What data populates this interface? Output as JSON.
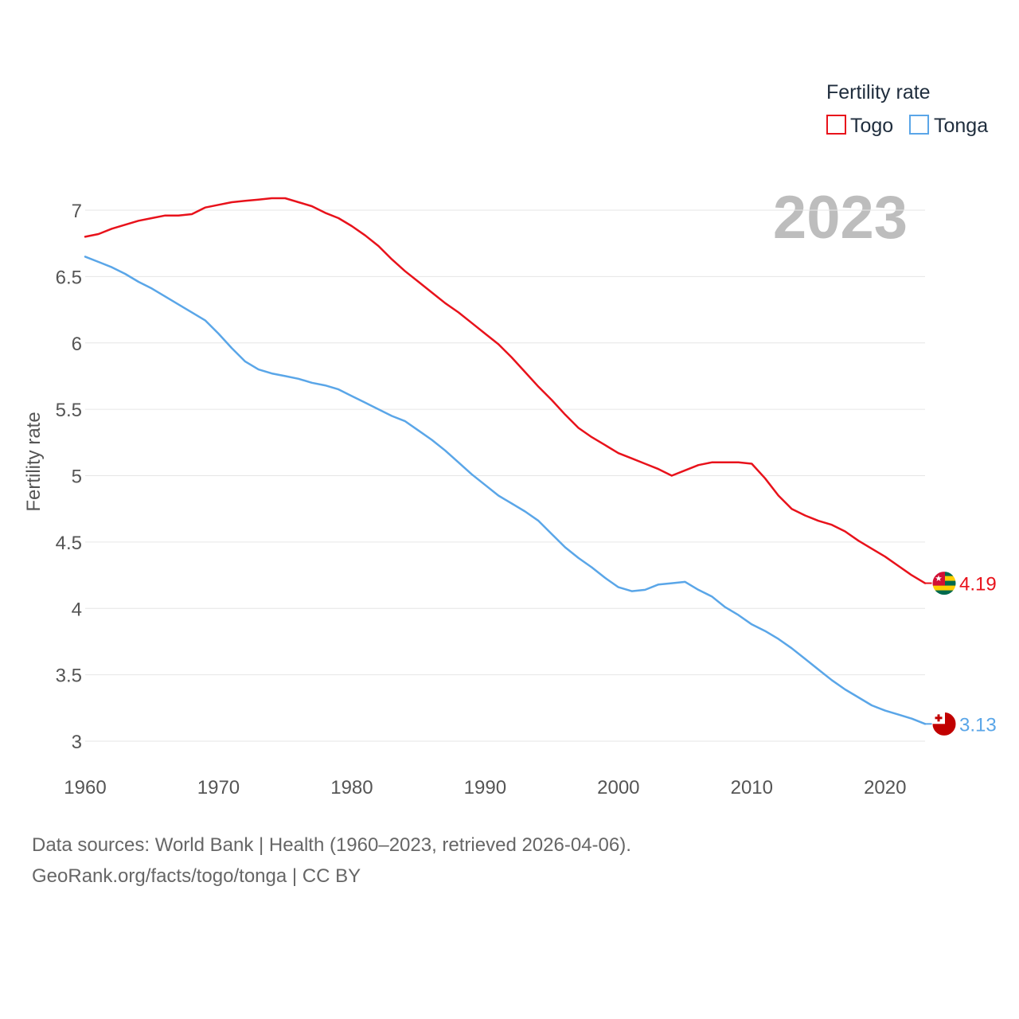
{
  "chart_data": {
    "type": "line",
    "ylabel": "Fertility rate",
    "xlabel": "",
    "xlim": [
      1960,
      2023
    ],
    "ylim": [
      3,
      7
    ],
    "x_ticks": [
      1960,
      1970,
      1980,
      1990,
      2000,
      2010,
      2020
    ],
    "y_ticks": [
      3,
      3.5,
      4,
      4.5,
      5,
      5.5,
      6,
      6.5,
      7
    ],
    "x_tick_labels": [
      "1960",
      "1970",
      "1980",
      "1990",
      "2000",
      "2010",
      "2020"
    ],
    "y_tick_labels": [
      "3",
      "3.5",
      "4",
      "4.5",
      "5",
      "5.5",
      "6",
      "6.5",
      "7"
    ],
    "grid": true,
    "year_label": "2023",
    "legend": {
      "title": "Fertility rate",
      "position": "top-right",
      "entries": [
        "Togo",
        "Tonga"
      ]
    },
    "x": [
      1960,
      1961,
      1962,
      1963,
      1964,
      1965,
      1966,
      1967,
      1968,
      1969,
      1970,
      1971,
      1972,
      1973,
      1974,
      1975,
      1976,
      1977,
      1978,
      1979,
      1980,
      1981,
      1982,
      1983,
      1984,
      1985,
      1986,
      1987,
      1988,
      1989,
      1990,
      1991,
      1992,
      1993,
      1994,
      1995,
      1996,
      1997,
      1998,
      1999,
      2000,
      2001,
      2002,
      2003,
      2004,
      2005,
      2006,
      2007,
      2008,
      2009,
      2010,
      2011,
      2012,
      2013,
      2014,
      2015,
      2016,
      2017,
      2018,
      2019,
      2020,
      2021,
      2022,
      2023
    ],
    "series": [
      {
        "name": "Togo",
        "color": "#e8121b",
        "end_label": "4.19",
        "flag": "togo-flag-icon",
        "values": [
          6.8,
          6.82,
          6.86,
          6.89,
          6.92,
          6.94,
          6.96,
          6.96,
          6.97,
          7.02,
          7.04,
          7.06,
          7.07,
          7.08,
          7.09,
          7.09,
          7.06,
          7.03,
          6.98,
          6.94,
          6.88,
          6.81,
          6.73,
          6.63,
          6.54,
          6.46,
          6.38,
          6.3,
          6.23,
          6.15,
          6.07,
          5.99,
          5.89,
          5.78,
          5.67,
          5.57,
          5.46,
          5.36,
          5.29,
          5.23,
          5.17,
          5.13,
          5.09,
          5.05,
          5.0,
          5.04,
          5.08,
          5.1,
          5.1,
          5.1,
          5.09,
          4.98,
          4.85,
          4.75,
          4.7,
          4.66,
          4.63,
          4.58,
          4.51,
          4.45,
          4.39,
          4.32,
          4.25,
          4.19
        ]
      },
      {
        "name": "Tonga",
        "color": "#5aa6e8",
        "end_label": "3.13",
        "flag": "tonga-flag-icon",
        "values": [
          6.65,
          6.61,
          6.57,
          6.52,
          6.46,
          6.41,
          6.35,
          6.29,
          6.23,
          6.17,
          6.07,
          5.96,
          5.86,
          5.8,
          5.77,
          5.75,
          5.73,
          5.7,
          5.68,
          5.65,
          5.6,
          5.55,
          5.5,
          5.45,
          5.41,
          5.34,
          5.27,
          5.19,
          5.1,
          5.01,
          4.93,
          4.85,
          4.79,
          4.73,
          4.66,
          4.56,
          4.46,
          4.38,
          4.31,
          4.23,
          4.16,
          4.13,
          4.14,
          4.18,
          4.19,
          4.2,
          4.14,
          4.09,
          4.01,
          3.95,
          3.88,
          3.83,
          3.77,
          3.7,
          3.62,
          3.54,
          3.46,
          3.39,
          3.33,
          3.27,
          3.23,
          3.2,
          3.17,
          3.13
        ]
      }
    ]
  },
  "footer": {
    "source": "Data sources: World Bank | Health (1960–2023, retrieved 2026-04-06).",
    "attribution": "GeoRank.org/facts/togo/tonga | CC BY"
  }
}
